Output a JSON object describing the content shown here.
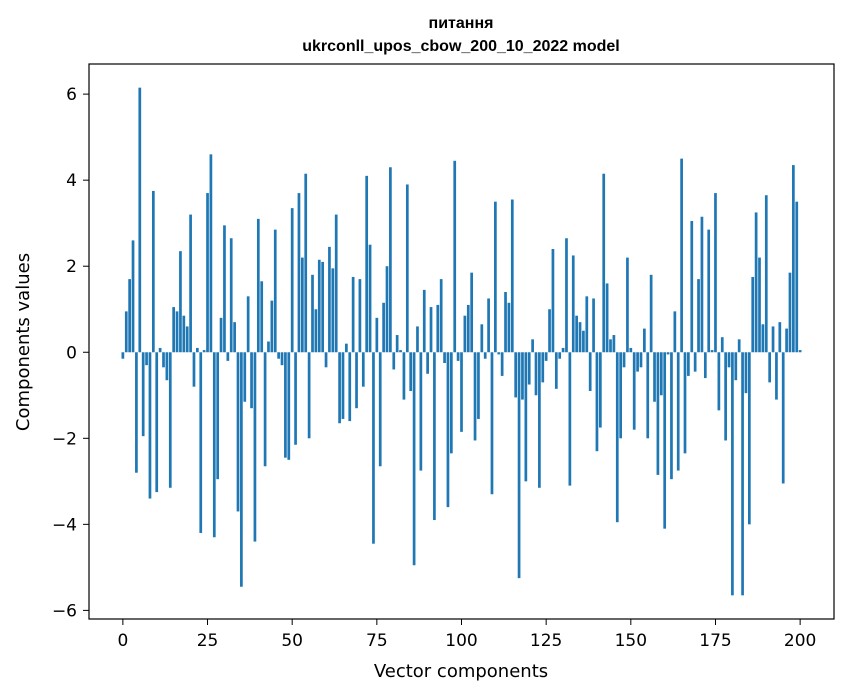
{
  "chart_data": {
    "type": "bar",
    "title_line1": "питання",
    "title_line2": "ukrconll_upos_cbow_200_10_2022 model",
    "xlabel": "Vector components",
    "ylabel": "Components values",
    "xlim": [
      -10,
      210
    ],
    "ylim": [
      -6.2,
      6.7
    ],
    "xticks": [
      0,
      25,
      50,
      75,
      100,
      125,
      150,
      175,
      200
    ],
    "xtick_labels": [
      "0",
      "25",
      "50",
      "75",
      "100",
      "125",
      "150",
      "175",
      "200"
    ],
    "yticks": [
      -6,
      -4,
      -2,
      0,
      2,
      4,
      6
    ],
    "ytick_labels": [
      "−6",
      "−4",
      "−2",
      "0",
      "2",
      "4",
      "6"
    ],
    "bar_color": "#1f77b4",
    "values": [
      -0.15,
      0.95,
      1.7,
      2.6,
      -2.8,
      6.15,
      -1.95,
      -0.3,
      -3.4,
      3.75,
      -3.25,
      0.1,
      -0.35,
      -0.65,
      -3.15,
      1.05,
      0.95,
      2.35,
      0.85,
      0.6,
      3.2,
      -0.8,
      0.1,
      -4.2,
      0.05,
      3.7,
      4.6,
      -4.3,
      -2.95,
      0.8,
      2.95,
      -0.2,
      2.65,
      0.7,
      -3.7,
      -5.45,
      -1.15,
      1.3,
      -1.3,
      -4.4,
      3.1,
      1.65,
      -2.65,
      0.25,
      1.2,
      2.85,
      -0.15,
      -0.3,
      -2.45,
      -2.5,
      3.35,
      -2.15,
      3.7,
      2.2,
      4.15,
      -2.0,
      1.8,
      1.0,
      2.15,
      2.1,
      -0.35,
      2.45,
      1.95,
      3.2,
      -1.65,
      -1.55,
      0.2,
      -1.6,
      1.75,
      -1.3,
      1.7,
      -0.8,
      4.1,
      2.5,
      -4.45,
      0.8,
      -2.65,
      1.15,
      2.0,
      4.3,
      -0.4,
      0.4,
      0.05,
      -1.1,
      3.9,
      -0.9,
      -4.95,
      0.6,
      -2.75,
      1.45,
      -0.5,
      1.05,
      -3.9,
      1.1,
      1.7,
      -0.25,
      -3.6,
      -2.35,
      4.45,
      -0.2,
      -1.85,
      0.85,
      1.1,
      1.85,
      -2.05,
      -1.55,
      0.65,
      -0.15,
      1.25,
      -3.3,
      3.5,
      -0.05,
      -0.55,
      1.4,
      1.15,
      3.55,
      -1.05,
      -5.25,
      -1.1,
      -3.0,
      -0.75,
      0.3,
      -1.0,
      -3.15,
      -0.7,
      -0.2,
      1.0,
      2.4,
      -0.85,
      -0.15,
      0.1,
      2.65,
      -3.1,
      2.25,
      0.85,
      0.7,
      0.5,
      1.3,
      -0.9,
      1.25,
      -2.3,
      -1.75,
      4.15,
      1.6,
      0.3,
      0.4,
      -3.95,
      -2.0,
      -0.35,
      2.2,
      0.1,
      -1.8,
      -0.45,
      -0.35,
      0.55,
      -2.0,
      1.8,
      -1.15,
      -2.85,
      -1.0,
      -4.1,
      -0.05,
      -2.95,
      0.95,
      -2.75,
      4.5,
      -2.35,
      -0.55,
      3.05,
      -0.45,
      1.7,
      3.15,
      -0.6,
      2.85,
      0.05,
      3.7,
      -1.35,
      0.35,
      -2.05,
      -0.35,
      -5.65,
      -0.65,
      0.3,
      -5.65,
      -0.95,
      -4.0,
      1.75,
      3.25,
      2.2,
      0.65,
      3.65,
      -0.7,
      0.6,
      -1.1,
      0.7,
      -3.05,
      0.55,
      1.85,
      4.35,
      3.5,
      0.05
    ]
  }
}
